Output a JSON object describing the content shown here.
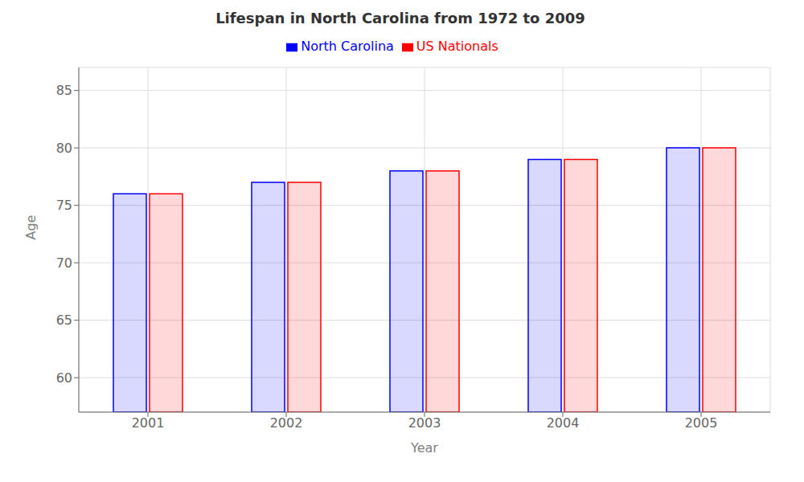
{
  "chart_data": {
    "type": "bar",
    "title": "Lifespan in North Carolina from 1972 to 2009",
    "xlabel": "Year",
    "ylabel": "Age",
    "categories": [
      "2001",
      "2002",
      "2003",
      "2004",
      "2005"
    ],
    "series": [
      {
        "name": "North Carolina",
        "color": "#0000ff",
        "values": [
          76,
          77,
          78,
          79,
          80
        ]
      },
      {
        "name": "US Nationals",
        "color": "#ff0000",
        "values": [
          76,
          77,
          78,
          79,
          80
        ]
      }
    ],
    "ylim": [
      57,
      87
    ],
    "yticks": [
      60,
      65,
      70,
      75,
      80,
      85
    ],
    "grid": true,
    "legend": "top"
  }
}
